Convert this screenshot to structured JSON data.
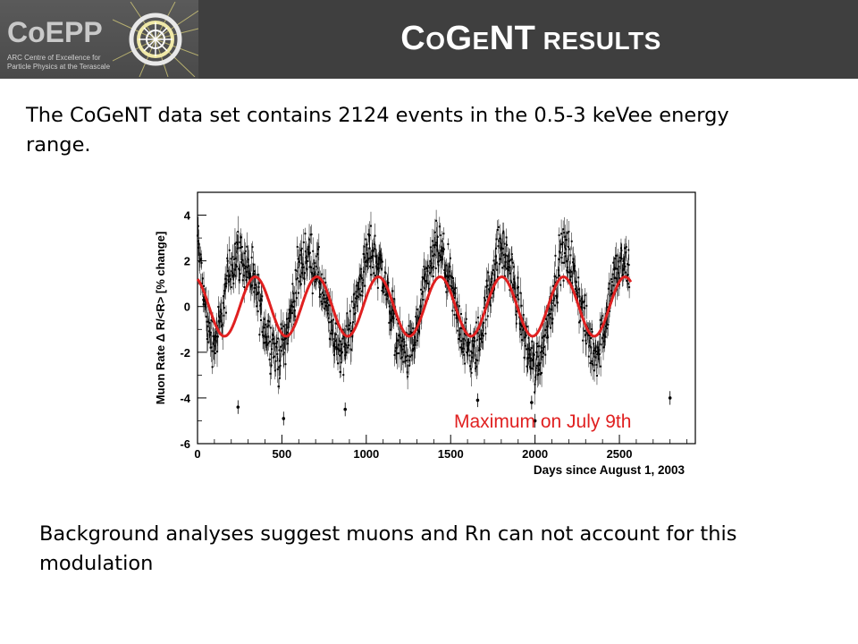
{
  "header": {
    "logo_text": "CoEPP",
    "logo_tagline_1": "ARC Centre of Excellence for",
    "logo_tagline_2": "Particle Physics at the Terascale",
    "title_parts": [
      {
        "text": "C",
        "size": "big"
      },
      {
        "text": "O",
        "size": "small"
      },
      {
        "text": "G",
        "size": "big"
      },
      {
        "text": "E",
        "size": "small"
      },
      {
        "text": "NT",
        "size": "big"
      },
      {
        "text": " RESULTS",
        "size": "small"
      }
    ]
  },
  "intro_text": "The CoGeNT data set contains 2124 events in the 0.5-3 keVee energy range.",
  "conclusion_text": "Background analyses suggest muons and Rn can not account for this modulation",
  "chart_data": {
    "type": "scatter",
    "xlabel": "Days since August 1, 2003",
    "ylabel": "Muon Rate  Δ R/<R> [% change]",
    "xlim": [
      0,
      2950
    ],
    "ylim": [
      -6,
      5
    ],
    "xticks": [
      0,
      500,
      1000,
      1500,
      2000,
      2500
    ],
    "yticks": [
      4,
      2,
      0,
      -2,
      -4,
      -6
    ],
    "x_tick_labels": [
      "0",
      "500",
      "1000",
      "1500",
      "2000",
      "2500"
    ],
    "y_tick_labels": [
      "4",
      "2",
      "0",
      "-2",
      "-4",
      "-6"
    ],
    "annotation": "Maximum on July 9th",
    "colors": {
      "data": "#000000",
      "fit": "#e02020",
      "annotation": "#e02020"
    },
    "fit_curve": {
      "amplitude": 1.3,
      "period_days": 365.25,
      "max_day": 342,
      "x_range": [
        0,
        2570
      ]
    },
    "series": [
      {
        "x": [
          0,
          20,
          40,
          60,
          80,
          100,
          120,
          140,
          160,
          180,
          200,
          220,
          240,
          260,
          280,
          300,
          320,
          340,
          360,
          380,
          400,
          420,
          440,
          460,
          480,
          500,
          520,
          540,
          560,
          580,
          600,
          620,
          640,
          660,
          680,
          700,
          720,
          740,
          760,
          780,
          800,
          820,
          840,
          860,
          880,
          900,
          920,
          940,
          960,
          980,
          1000,
          1020,
          1040,
          1060,
          1080,
          1100,
          1120,
          1140,
          1160,
          1180,
          1200,
          1220,
          1240,
          1260,
          1280,
          1300,
          1320,
          1340,
          1360,
          1380,
          1400,
          1420,
          1440,
          1460,
          1480,
          1500,
          1520,
          1540,
          1560,
          1580,
          1600,
          1620,
          1640,
          1660,
          1680,
          1700,
          1720,
          1740,
          1760,
          1780,
          1800,
          1820,
          1840,
          1860,
          1880,
          1900,
          1920,
          1940,
          1960,
          1980,
          2000,
          2020,
          2040,
          2060,
          2080,
          2100,
          2120,
          2140,
          2160,
          2180,
          2200,
          2220,
          2240,
          2260,
          2280,
          2300,
          2320,
          2340,
          2360,
          2380,
          2400,
          2420,
          2440,
          2460,
          2480,
          2500,
          2520,
          2540,
          2560
        ],
        "y": [
          3.0,
          1.5,
          0.4,
          -0.8,
          -1.3,
          -1.5,
          -1.2,
          -0.6,
          0.3,
          1.2,
          1.8,
          2.1,
          2.4,
          2.0,
          1.9,
          1.7,
          1.2,
          0.8,
          0.2,
          -0.4,
          -0.9,
          -1.3,
          -1.6,
          -1.9,
          -2.2,
          -1.8,
          -1.3,
          -0.8,
          -0.1,
          0.7,
          1.5,
          1.9,
          2.3,
          2.2,
          2.0,
          1.7,
          1.3,
          0.6,
          0.0,
          -0.5,
          -1.1,
          -1.5,
          -1.7,
          -1.9,
          -1.6,
          -1.1,
          -0.5,
          0.2,
          0.9,
          1.6,
          2.0,
          2.5,
          2.3,
          2.1,
          1.8,
          1.4,
          0.6,
          0.1,
          -0.5,
          -1.2,
          -1.6,
          -1.9,
          -2.1,
          -2.0,
          -1.6,
          -1.1,
          -0.3,
          0.5,
          1.1,
          1.6,
          2.2,
          2.6,
          2.3,
          2.0,
          1.5,
          0.9,
          0.2,
          -0.4,
          -1.0,
          -1.5,
          -1.8,
          -2.2,
          -2.0,
          -1.6,
          -1.1,
          -0.4,
          0.4,
          1.1,
          1.8,
          2.3,
          2.5,
          2.4,
          1.9,
          1.4,
          0.8,
          0.1,
          -0.6,
          -1.4,
          -1.9,
          -2.3,
          -2.8,
          -2.3,
          -1.9,
          -1.2,
          -0.5,
          0.3,
          1.1,
          1.7,
          2.3,
          2.4,
          2.2,
          1.7,
          1.1,
          0.4,
          -0.2,
          -1.0,
          -1.5,
          -1.9,
          -2.0,
          -1.8,
          -1.2,
          -0.5,
          0.3,
          1.0,
          1.5,
          1.6,
          1.8,
          1.7,
          1.4
        ]
      }
    ],
    "outliers": {
      "x": [
        240,
        1660,
        1980,
        2800
      ],
      "y": [
        -4.4,
        -4.1,
        -4.2,
        -4.0
      ]
    },
    "outliers_2": {
      "x": [
        510,
        875,
        2000
      ],
      "y": [
        -4.9,
        -4.5,
        -5.0
      ]
    }
  }
}
